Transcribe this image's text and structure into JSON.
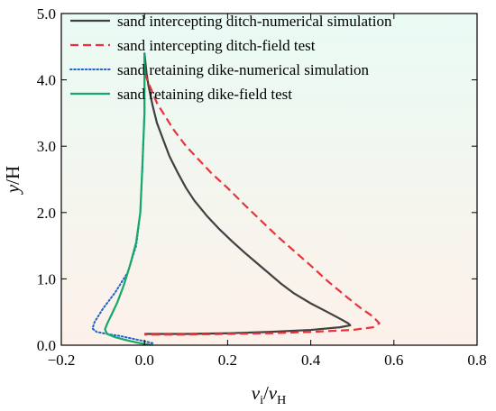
{
  "chart_data": {
    "type": "line",
    "title": "",
    "xlabel": {
      "main": "v",
      "sub": "i",
      "slash": "/",
      "main2": "v",
      "sub2": "H"
    },
    "ylabel": {
      "main": "y",
      "rest": "/H"
    },
    "xlim": [
      -0.2,
      0.8
    ],
    "ylim": [
      0,
      5.0
    ],
    "xticks": [
      -0.2,
      0.0,
      0.2,
      0.4,
      0.6,
      0.8
    ],
    "xtick_labels": [
      "−0.2",
      "0.0",
      "0.2",
      "0.4",
      "0.6",
      "0.8"
    ],
    "yticks": [
      0,
      1,
      2,
      3,
      4,
      5
    ],
    "ytick_labels": [
      "0.0",
      "1.0",
      "2.0",
      "3.0",
      "4.0",
      "5.0"
    ],
    "grid": false,
    "legend_position": "top-left",
    "background_gradient": {
      "top": "#e9fbf4",
      "bottom": "#fdf1ea"
    },
    "series": [
      {
        "name": "sand intercepting ditch-numerical simulation",
        "color": "#404040",
        "dash": "solid",
        "x": [
          0.0,
          0.005,
          0.01,
          0.02,
          0.03,
          0.045,
          0.06,
          0.08,
          0.1,
          0.12,
          0.15,
          0.18,
          0.21,
          0.24,
          0.27,
          0.3,
          0.33,
          0.36,
          0.4,
          0.44,
          0.47,
          0.49,
          0.495,
          0.47,
          0.4,
          0.3,
          0.2,
          0.1,
          0.0
        ],
        "y": [
          4.4,
          4.1,
          3.9,
          3.6,
          3.35,
          3.1,
          2.85,
          2.6,
          2.37,
          2.18,
          1.95,
          1.75,
          1.57,
          1.4,
          1.24,
          1.08,
          0.92,
          0.78,
          0.63,
          0.5,
          0.4,
          0.33,
          0.3,
          0.27,
          0.23,
          0.2,
          0.18,
          0.17,
          0.17
        ]
      },
      {
        "name": "sand intercepting ditch-field test",
        "color": "#e8333a",
        "dash": "dashed",
        "x": [
          0.0,
          0.01,
          0.02,
          0.03,
          0.05,
          0.07,
          0.1,
          0.13,
          0.16,
          0.2,
          0.24,
          0.28,
          0.32,
          0.36,
          0.4,
          0.44,
          0.48,
          0.52,
          0.55,
          0.565,
          0.55,
          0.5,
          0.4,
          0.3,
          0.2,
          0.1,
          0.0
        ],
        "y": [
          4.1,
          3.95,
          3.8,
          3.65,
          3.45,
          3.25,
          3.0,
          2.8,
          2.6,
          2.37,
          2.12,
          1.88,
          1.64,
          1.42,
          1.2,
          0.97,
          0.76,
          0.56,
          0.43,
          0.33,
          0.27,
          0.23,
          0.2,
          0.18,
          0.17,
          0.16,
          0.16
        ]
      },
      {
        "name": "sand retaining dike-numerical simulation",
        "color": "#1f63c6",
        "dash": "dotted",
        "x": [
          0.0,
          0.0,
          -0.005,
          -0.01,
          -0.02,
          -0.04,
          -0.07,
          -0.1,
          -0.12,
          -0.125,
          -0.115,
          -0.09,
          -0.06,
          -0.03,
          0.0,
          0.02
        ],
        "y": [
          4.4,
          3.5,
          2.7,
          2.0,
          1.5,
          1.1,
          0.8,
          0.55,
          0.35,
          0.25,
          0.2,
          0.17,
          0.14,
          0.1,
          0.06,
          0.03
        ]
      },
      {
        "name": "sand retaining dike-field test",
        "color": "#16a86a",
        "dash": "solid",
        "x": [
          0.0,
          0.0,
          -0.005,
          -0.01,
          -0.02,
          -0.035,
          -0.05,
          -0.065,
          -0.08,
          -0.09,
          -0.095,
          -0.09,
          -0.07,
          -0.04,
          -0.01,
          0.02
        ],
        "y": [
          4.4,
          3.5,
          2.7,
          2.0,
          1.55,
          1.2,
          0.9,
          0.65,
          0.45,
          0.32,
          0.24,
          0.17,
          0.12,
          0.07,
          0.03,
          0.0
        ]
      }
    ]
  }
}
